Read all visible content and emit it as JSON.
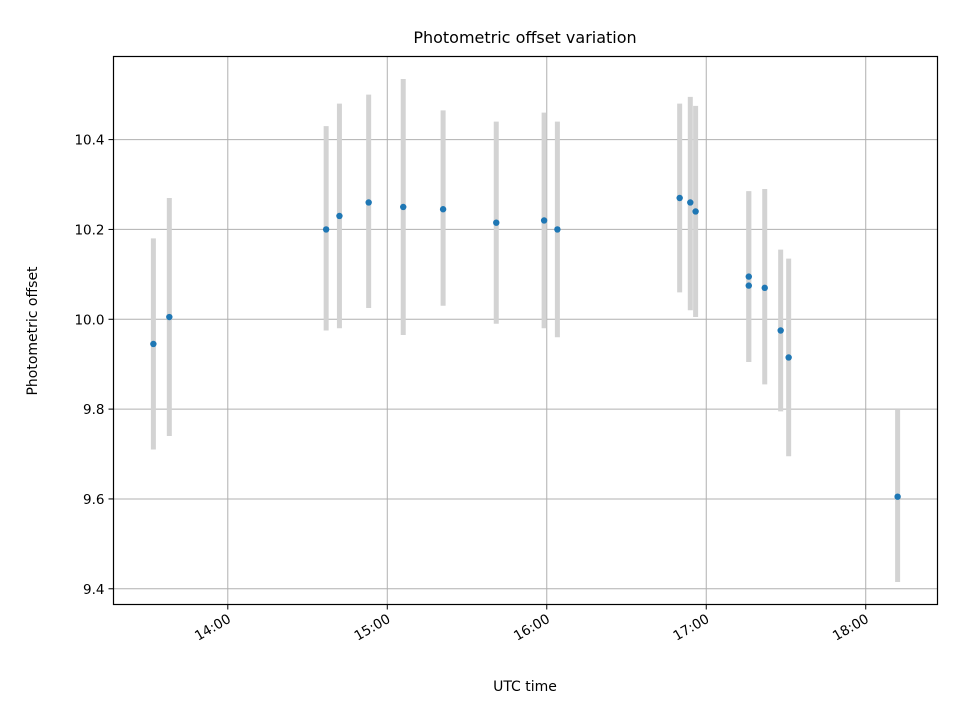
{
  "chart_data": {
    "type": "scatter",
    "title": "Photometric offset variation",
    "xlabel": "UTC time",
    "ylabel": "Photometric offset",
    "xlim": [
      "13:17",
      "18:27"
    ],
    "ylim": [
      9.365,
      10.585
    ],
    "grid": true,
    "x_ticks": [
      "14:00",
      "15:00",
      "16:00",
      "17:00",
      "18:00"
    ],
    "y_ticks": [
      "9.4",
      "9.6",
      "9.8",
      "10.0",
      "10.2",
      "10.4"
    ],
    "colors": {
      "point": "#1f77b4",
      "errorbar": "#d3d3d3",
      "grid": "#b0b0b0"
    },
    "points": [
      {
        "x": "13:32",
        "y": 9.945,
        "ylow": 9.71,
        "yhigh": 10.18
      },
      {
        "x": "13:38",
        "y": 10.005,
        "ylow": 9.74,
        "yhigh": 10.27
      },
      {
        "x": "14:37",
        "y": 10.2,
        "ylow": 9.975,
        "yhigh": 10.43
      },
      {
        "x": "14:42",
        "y": 10.23,
        "ylow": 9.98,
        "yhigh": 10.48
      },
      {
        "x": "14:53",
        "y": 10.26,
        "ylow": 10.025,
        "yhigh": 10.5
      },
      {
        "x": "15:06",
        "y": 10.25,
        "ylow": 9.965,
        "yhigh": 10.535
      },
      {
        "x": "15:21",
        "y": 10.245,
        "ylow": 10.03,
        "yhigh": 10.465
      },
      {
        "x": "15:41",
        "y": 10.215,
        "ylow": 9.99,
        "yhigh": 10.44
      },
      {
        "x": "15:59",
        "y": 10.22,
        "ylow": 9.98,
        "yhigh": 10.46
      },
      {
        "x": "16:04",
        "y": 10.2,
        "ylow": 9.96,
        "yhigh": 10.44
      },
      {
        "x": "16:50",
        "y": 10.27,
        "ylow": 10.06,
        "yhigh": 10.48
      },
      {
        "x": "16:54",
        "y": 10.26,
        "ylow": 10.02,
        "yhigh": 10.495
      },
      {
        "x": "16:56",
        "y": 10.24,
        "ylow": 10.005,
        "yhigh": 10.475
      },
      {
        "x": "17:16",
        "y": 10.095,
        "ylow": 9.905,
        "yhigh": 10.285
      },
      {
        "x": "17:16",
        "y": 10.075,
        "ylow": 9.905,
        "yhigh": 10.285
      },
      {
        "x": "17:22",
        "y": 10.07,
        "ylow": 9.855,
        "yhigh": 10.29
      },
      {
        "x": "17:28",
        "y": 9.975,
        "ylow": 9.795,
        "yhigh": 10.155
      },
      {
        "x": "17:31",
        "y": 9.915,
        "ylow": 9.695,
        "yhigh": 10.135
      },
      {
        "x": "18:12",
        "y": 9.605,
        "ylow": 9.415,
        "yhigh": 9.8
      }
    ]
  }
}
